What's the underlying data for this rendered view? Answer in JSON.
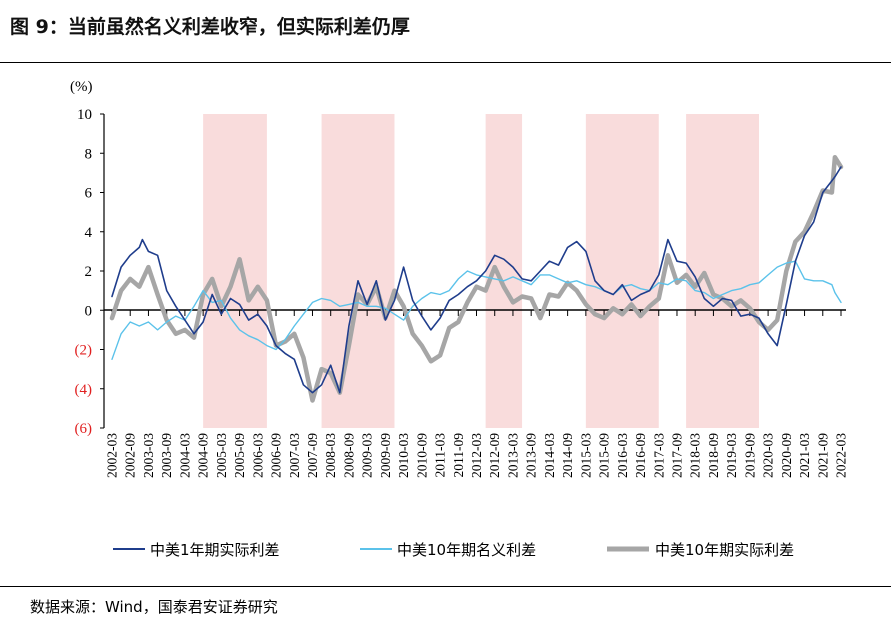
{
  "figure": {
    "title": "图 9：当前虽然名义利差收窄，但实际利差仍厚",
    "source": "数据来源：Wind，国泰君安证券研究"
  },
  "colors": {
    "real1y": "#1f3d8c",
    "nominal10y": "#5bc2ea",
    "real10y": "#a6a6a6",
    "shade": "#f9dcdc",
    "negative_tick": "#e02020"
  },
  "chart_data": {
    "type": "line",
    "unit_label": "(%)",
    "ylim": [
      -6,
      10
    ],
    "yticks": [
      {
        "value": 10,
        "label": "10"
      },
      {
        "value": 8,
        "label": "8"
      },
      {
        "value": 6,
        "label": "6"
      },
      {
        "value": 4,
        "label": "4"
      },
      {
        "value": 2,
        "label": "2"
      },
      {
        "value": 0,
        "label": "0"
      },
      {
        "value": -2,
        "label": "(2)"
      },
      {
        "value": -4,
        "label": "(4)"
      },
      {
        "value": -6,
        "label": "(6)"
      }
    ],
    "x_tick_labels": [
      "2002-03",
      "2002-09",
      "2003-03",
      "2003-09",
      "2004-03",
      "2004-09",
      "2005-03",
      "2005-09",
      "2006-03",
      "2006-09",
      "2007-03",
      "2007-09",
      "2008-03",
      "2008-09",
      "2009-03",
      "2009-09",
      "2010-03",
      "2010-09",
      "2011-03",
      "2011-09",
      "2012-03",
      "2012-09",
      "2013-03",
      "2013-09",
      "2014-03",
      "2014-09",
      "2015-03",
      "2015-09",
      "2016-03",
      "2016-09",
      "2017-03",
      "2017-09",
      "2018-03",
      "2018-09",
      "2019-03",
      "2019-09",
      "2020-03",
      "2020-09",
      "2021-03",
      "2021-09",
      "2022-03"
    ],
    "shaded_periods": [
      {
        "start": "2004-09",
        "end": "2006-06"
      },
      {
        "start": "2007-12",
        "end": "2009-12"
      },
      {
        "start": "2012-06",
        "end": "2013-06"
      },
      {
        "start": "2015-03",
        "end": "2017-03"
      },
      {
        "start": "2017-12",
        "end": "2019-12"
      }
    ],
    "series": [
      {
        "name": "中美1年期实际利差",
        "key": "real1y",
        "points": [
          [
            "2002-03",
            0.7
          ],
          [
            "2002-06",
            2.2
          ],
          [
            "2002-09",
            2.8
          ],
          [
            "2002-12",
            3.2
          ],
          [
            "2003-01",
            3.6
          ],
          [
            "2003-03",
            3.0
          ],
          [
            "2003-06",
            2.8
          ],
          [
            "2003-09",
            1.0
          ],
          [
            "2003-12",
            0.2
          ],
          [
            "2004-03",
            -0.5
          ],
          [
            "2004-06",
            -1.2
          ],
          [
            "2004-09",
            -0.6
          ],
          [
            "2004-12",
            0.8
          ],
          [
            "2005-03",
            -0.2
          ],
          [
            "2005-06",
            0.6
          ],
          [
            "2005-09",
            0.3
          ],
          [
            "2005-12",
            -0.5
          ],
          [
            "2006-03",
            -0.2
          ],
          [
            "2006-06",
            -0.8
          ],
          [
            "2006-09",
            -1.8
          ],
          [
            "2006-12",
            -2.2
          ],
          [
            "2007-03",
            -2.5
          ],
          [
            "2007-06",
            -3.8
          ],
          [
            "2007-09",
            -4.2
          ],
          [
            "2007-12",
            -3.8
          ],
          [
            "2008-03",
            -2.8
          ],
          [
            "2008-06",
            -4.2
          ],
          [
            "2008-09",
            -0.8
          ],
          [
            "2008-12",
            1.5
          ],
          [
            "2009-03",
            0.3
          ],
          [
            "2009-06",
            1.5
          ],
          [
            "2009-09",
            -0.5
          ],
          [
            "2009-12",
            0.5
          ],
          [
            "2010-03",
            2.2
          ],
          [
            "2010-06",
            0.5
          ],
          [
            "2010-09",
            -0.3
          ],
          [
            "2010-12",
            -1.0
          ],
          [
            "2011-03",
            -0.4
          ],
          [
            "2011-06",
            0.5
          ],
          [
            "2011-09",
            0.8
          ],
          [
            "2011-12",
            1.2
          ],
          [
            "2012-03",
            1.5
          ],
          [
            "2012-06",
            2.0
          ],
          [
            "2012-09",
            2.8
          ],
          [
            "2012-12",
            2.6
          ],
          [
            "2013-03",
            2.2
          ],
          [
            "2013-06",
            1.6
          ],
          [
            "2013-09",
            1.5
          ],
          [
            "2013-12",
            2.0
          ],
          [
            "2014-03",
            2.5
          ],
          [
            "2014-06",
            2.3
          ],
          [
            "2014-09",
            3.2
          ],
          [
            "2014-12",
            3.5
          ],
          [
            "2015-03",
            3.0
          ],
          [
            "2015-06",
            1.5
          ],
          [
            "2015-09",
            1.0
          ],
          [
            "2015-12",
            0.8
          ],
          [
            "2016-03",
            1.3
          ],
          [
            "2016-06",
            0.5
          ],
          [
            "2016-09",
            0.8
          ],
          [
            "2016-12",
            1.0
          ],
          [
            "2017-03",
            1.8
          ],
          [
            "2017-06",
            3.6
          ],
          [
            "2017-09",
            2.5
          ],
          [
            "2017-12",
            2.4
          ],
          [
            "2018-03",
            1.7
          ],
          [
            "2018-06",
            0.6
          ],
          [
            "2018-09",
            0.2
          ],
          [
            "2018-12",
            0.6
          ],
          [
            "2019-03",
            0.5
          ],
          [
            "2019-06",
            -0.3
          ],
          [
            "2019-09",
            -0.2
          ],
          [
            "2019-12",
            -0.4
          ],
          [
            "2020-03",
            -1.2
          ],
          [
            "2020-06",
            -1.8
          ],
          [
            "2020-09",
            0.3
          ],
          [
            "2020-12",
            2.5
          ],
          [
            "2021-03",
            3.8
          ],
          [
            "2021-06",
            4.5
          ],
          [
            "2021-09",
            6.0
          ],
          [
            "2021-12",
            6.6
          ],
          [
            "2022-01",
            6.8
          ],
          [
            "2022-03",
            7.3
          ]
        ]
      },
      {
        "name": "中美10年期名义利差",
        "key": "nominal10y",
        "points": [
          [
            "2002-03",
            -2.5
          ],
          [
            "2002-06",
            -1.2
          ],
          [
            "2002-09",
            -0.6
          ],
          [
            "2002-12",
            -0.8
          ],
          [
            "2003-03",
            -0.6
          ],
          [
            "2003-06",
            -1.0
          ],
          [
            "2003-09",
            -0.6
          ],
          [
            "2003-12",
            -0.3
          ],
          [
            "2004-03",
            -0.5
          ],
          [
            "2004-06",
            0.2
          ],
          [
            "2004-09",
            1.0
          ],
          [
            "2004-12",
            0.4
          ],
          [
            "2005-03",
            0.5
          ],
          [
            "2005-06",
            -0.4
          ],
          [
            "2005-09",
            -1.0
          ],
          [
            "2005-12",
            -1.3
          ],
          [
            "2006-03",
            -1.5
          ],
          [
            "2006-06",
            -1.8
          ],
          [
            "2006-09",
            -2.0
          ],
          [
            "2006-12",
            -1.5
          ],
          [
            "2007-03",
            -0.8
          ],
          [
            "2007-06",
            -0.2
          ],
          [
            "2007-09",
            0.4
          ],
          [
            "2007-12",
            0.6
          ],
          [
            "2008-03",
            0.5
          ],
          [
            "2008-06",
            0.2
          ],
          [
            "2008-09",
            0.3
          ],
          [
            "2008-12",
            0.4
          ],
          [
            "2009-03",
            0.2
          ],
          [
            "2009-06",
            0.2
          ],
          [
            "2009-09",
            0.1
          ],
          [
            "2009-12",
            -0.2
          ],
          [
            "2010-03",
            -0.5
          ],
          [
            "2010-06",
            0.2
          ],
          [
            "2010-09",
            0.6
          ],
          [
            "2010-12",
            0.9
          ],
          [
            "2011-03",
            0.8
          ],
          [
            "2011-06",
            1.0
          ],
          [
            "2011-09",
            1.6
          ],
          [
            "2011-12",
            2.0
          ],
          [
            "2012-03",
            1.8
          ],
          [
            "2012-06",
            1.7
          ],
          [
            "2012-09",
            1.6
          ],
          [
            "2012-12",
            1.5
          ],
          [
            "2013-03",
            1.7
          ],
          [
            "2013-06",
            1.5
          ],
          [
            "2013-09",
            1.3
          ],
          [
            "2013-12",
            1.8
          ],
          [
            "2014-03",
            1.8
          ],
          [
            "2014-06",
            1.6
          ],
          [
            "2014-09",
            1.4
          ],
          [
            "2014-12",
            1.5
          ],
          [
            "2015-03",
            1.3
          ],
          [
            "2015-06",
            1.2
          ],
          [
            "2015-09",
            1.0
          ],
          [
            "2015-12",
            0.8
          ],
          [
            "2016-03",
            1.2
          ],
          [
            "2016-06",
            1.3
          ],
          [
            "2016-09",
            1.1
          ],
          [
            "2016-12",
            1.0
          ],
          [
            "2017-03",
            1.4
          ],
          [
            "2017-06",
            1.3
          ],
          [
            "2017-09",
            1.6
          ],
          [
            "2017-12",
            1.5
          ],
          [
            "2018-03",
            1.0
          ],
          [
            "2018-06",
            0.9
          ],
          [
            "2018-09",
            0.6
          ],
          [
            "2018-12",
            0.8
          ],
          [
            "2019-03",
            1.0
          ],
          [
            "2019-06",
            1.1
          ],
          [
            "2019-09",
            1.3
          ],
          [
            "2019-12",
            1.4
          ],
          [
            "2020-03",
            1.8
          ],
          [
            "2020-06",
            2.2
          ],
          [
            "2020-09",
            2.4
          ],
          [
            "2020-12",
            2.5
          ],
          [
            "2021-03",
            1.6
          ],
          [
            "2021-06",
            1.5
          ],
          [
            "2021-09",
            1.5
          ],
          [
            "2021-12",
            1.3
          ],
          [
            "2022-01",
            0.9
          ],
          [
            "2022-03",
            0.4
          ]
        ]
      },
      {
        "name": "中美10年期实际利差",
        "key": "real10y",
        "points": [
          [
            "2002-03",
            -0.4
          ],
          [
            "2002-06",
            1.0
          ],
          [
            "2002-09",
            1.6
          ],
          [
            "2002-12",
            1.2
          ],
          [
            "2003-03",
            2.2
          ],
          [
            "2003-06",
            0.8
          ],
          [
            "2003-09",
            -0.5
          ],
          [
            "2003-12",
            -1.2
          ],
          [
            "2004-03",
            -1.0
          ],
          [
            "2004-06",
            -1.4
          ],
          [
            "2004-09",
            0.8
          ],
          [
            "2004-12",
            1.6
          ],
          [
            "2005-03",
            0.2
          ],
          [
            "2005-06",
            1.2
          ],
          [
            "2005-09",
            2.6
          ],
          [
            "2005-12",
            0.5
          ],
          [
            "2006-03",
            1.2
          ],
          [
            "2006-06",
            0.5
          ],
          [
            "2006-09",
            -1.8
          ],
          [
            "2006-12",
            -1.6
          ],
          [
            "2007-03",
            -1.2
          ],
          [
            "2007-06",
            -2.4
          ],
          [
            "2007-09",
            -4.6
          ],
          [
            "2007-12",
            -3.0
          ],
          [
            "2008-03",
            -3.2
          ],
          [
            "2008-06",
            -4.2
          ],
          [
            "2008-09",
            -1.8
          ],
          [
            "2008-12",
            0.8
          ],
          [
            "2009-03",
            0.3
          ],
          [
            "2009-06",
            1.2
          ],
          [
            "2009-09",
            -0.4
          ],
          [
            "2009-12",
            1.0
          ],
          [
            "2010-03",
            0.2
          ],
          [
            "2010-06",
            -1.2
          ],
          [
            "2010-09",
            -1.8
          ],
          [
            "2010-12",
            -2.6
          ],
          [
            "2011-03",
            -2.3
          ],
          [
            "2011-06",
            -0.9
          ],
          [
            "2011-09",
            -0.6
          ],
          [
            "2011-12",
            0.4
          ],
          [
            "2012-03",
            1.2
          ],
          [
            "2012-06",
            1.0
          ],
          [
            "2012-09",
            2.2
          ],
          [
            "2012-12",
            1.2
          ],
          [
            "2013-03",
            0.4
          ],
          [
            "2013-06",
            0.7
          ],
          [
            "2013-09",
            0.6
          ],
          [
            "2013-12",
            -0.4
          ],
          [
            "2014-03",
            0.8
          ],
          [
            "2014-06",
            0.7
          ],
          [
            "2014-09",
            1.4
          ],
          [
            "2014-12",
            1.0
          ],
          [
            "2015-03",
            0.3
          ],
          [
            "2015-06",
            -0.2
          ],
          [
            "2015-09",
            -0.4
          ],
          [
            "2015-12",
            0.1
          ],
          [
            "2016-03",
            -0.2
          ],
          [
            "2016-06",
            0.3
          ],
          [
            "2016-09",
            -0.3
          ],
          [
            "2016-12",
            0.2
          ],
          [
            "2017-03",
            0.6
          ],
          [
            "2017-06",
            2.8
          ],
          [
            "2017-09",
            1.4
          ],
          [
            "2017-12",
            1.8
          ],
          [
            "2018-03",
            1.2
          ],
          [
            "2018-06",
            1.9
          ],
          [
            "2018-09",
            0.8
          ],
          [
            "2018-12",
            0.6
          ],
          [
            "2019-03",
            0.2
          ],
          [
            "2019-06",
            0.5
          ],
          [
            "2019-09",
            0.1
          ],
          [
            "2019-12",
            -0.6
          ],
          [
            "2020-03",
            -1.0
          ],
          [
            "2020-06",
            -0.5
          ],
          [
            "2020-09",
            2.0
          ],
          [
            "2020-12",
            3.5
          ],
          [
            "2021-03",
            4.0
          ],
          [
            "2021-06",
            5.0
          ],
          [
            "2021-09",
            6.1
          ],
          [
            "2021-12",
            6.0
          ],
          [
            "2022-01",
            7.8
          ],
          [
            "2022-03",
            7.3
          ]
        ]
      }
    ]
  }
}
